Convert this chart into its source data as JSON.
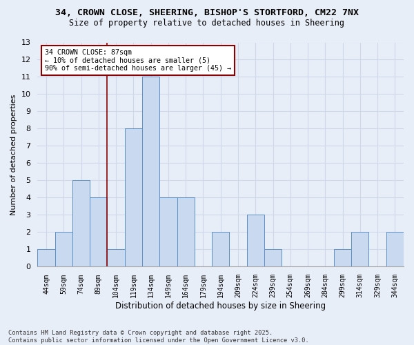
{
  "title_line1": "34, CROWN CLOSE, SHEERING, BISHOP'S STORTFORD, CM22 7NX",
  "title_line2": "Size of property relative to detached houses in Sheering",
  "xlabel": "Distribution of detached houses by size in Sheering",
  "ylabel": "Number of detached properties",
  "categories": [
    "44sqm",
    "59sqm",
    "74sqm",
    "89sqm",
    "104sqm",
    "119sqm",
    "134sqm",
    "149sqm",
    "164sqm",
    "179sqm",
    "194sqm",
    "209sqm",
    "224sqm",
    "239sqm",
    "254sqm",
    "269sqm",
    "284sqm",
    "299sqm",
    "314sqm",
    "329sqm",
    "344sqm"
  ],
  "values": [
    1,
    2,
    5,
    4,
    1,
    8,
    11,
    4,
    4,
    0,
    2,
    0,
    3,
    1,
    0,
    0,
    0,
    1,
    2,
    0,
    2
  ],
  "bar_color": "#c9d9f0",
  "bar_edge_color": "#5b8fc9",
  "ylim": [
    0,
    13
  ],
  "yticks": [
    0,
    1,
    2,
    3,
    4,
    5,
    6,
    7,
    8,
    9,
    10,
    11,
    12,
    13
  ],
  "grid_color": "#d0d8e8",
  "annotation_text": "34 CROWN CLOSE: 87sqm\n← 10% of detached houses are smaller (5)\n90% of semi-detached houses are larger (45) →",
  "vline_x": 3.5,
  "footer_line1": "Contains HM Land Registry data © Crown copyright and database right 2025.",
  "footer_line2": "Contains public sector information licensed under the Open Government Licence v3.0.",
  "background_color": "#e8eef8"
}
